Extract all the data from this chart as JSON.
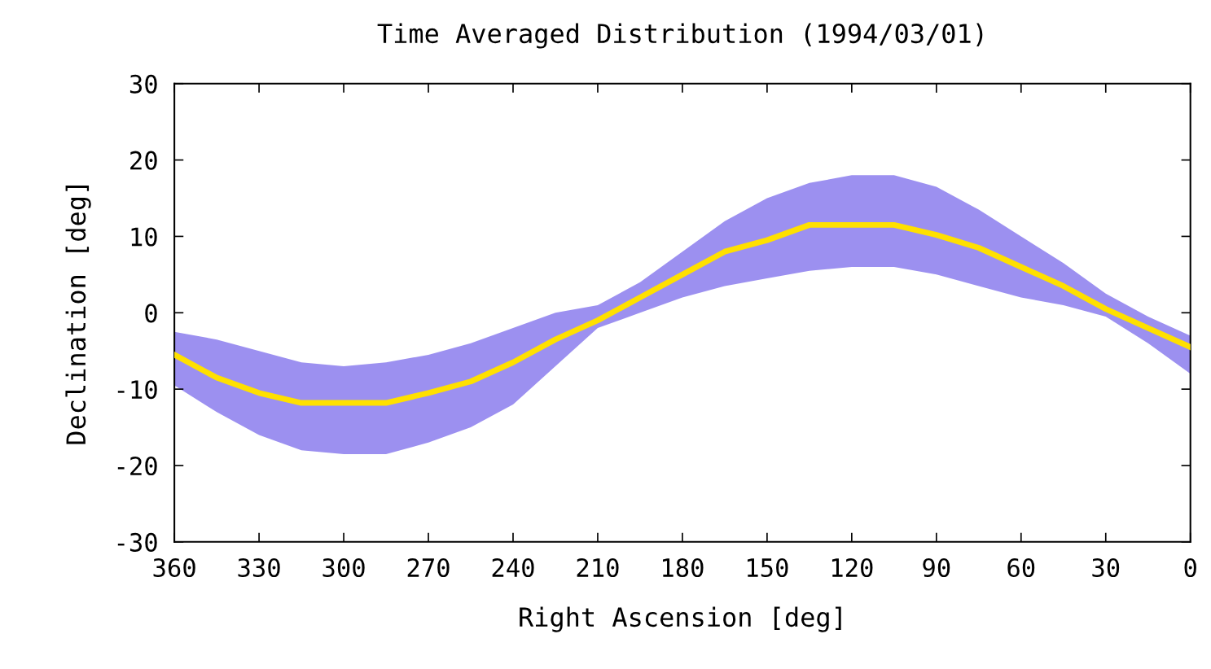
{
  "chart_data": {
    "type": "line",
    "title": "Time Averaged Distribution (1994/03/01)",
    "xlabel": "Right Ascension [deg]",
    "ylabel": "Declination [deg]",
    "x": [
      360,
      345,
      330,
      315,
      300,
      285,
      270,
      255,
      240,
      225,
      210,
      195,
      180,
      165,
      150,
      135,
      120,
      105,
      90,
      75,
      60,
      45,
      30,
      15,
      0
    ],
    "series": [
      {
        "color": "#ffe000",
        "values": [
          -5.5,
          -8.5,
          -10.5,
          -11.8,
          -11.8,
          -11.8,
          -10.5,
          -9,
          -6.5,
          -3.5,
          -1,
          2,
          5,
          8,
          9.5,
          11.5,
          11.5,
          11.5,
          10.2,
          8.5,
          6,
          3.5,
          0.5,
          -2,
          -4.5
        ],
        "lower": [
          -9.5,
          -13,
          -16,
          -18,
          -18.5,
          -18.5,
          -17,
          -15,
          -12,
          -7,
          -2,
          0,
          2,
          3.5,
          4.5,
          5.5,
          6,
          6,
          5,
          3.5,
          2,
          1,
          -0.5,
          -4,
          -8
        ],
        "upper": [
          -2.5,
          -3.5,
          -5,
          -6.5,
          -7,
          -6.5,
          -5.5,
          -4,
          -2,
          0,
          1,
          4,
          8,
          12,
          15,
          17,
          18,
          18,
          16.5,
          13.5,
          10,
          6.5,
          2.5,
          -0.5,
          -3
        ]
      }
    ],
    "xlim": [
      360,
      0
    ],
    "xticks": [
      360,
      330,
      300,
      270,
      240,
      210,
      180,
      150,
      120,
      90,
      60,
      30,
      0
    ],
    "ylim": [
      -30,
      30
    ],
    "yticks": [
      -30,
      -20,
      -10,
      0,
      10,
      20,
      30
    ],
    "line_style": "solid"
  }
}
